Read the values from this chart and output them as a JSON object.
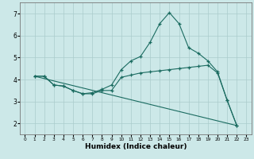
{
  "title": "",
  "xlabel": "Humidex (Indice chaleur)",
  "xlim": [
    -0.5,
    23.5
  ],
  "ylim": [
    1.5,
    7.5
  ],
  "xticks": [
    0,
    1,
    2,
    3,
    4,
    5,
    6,
    7,
    8,
    9,
    10,
    11,
    12,
    13,
    14,
    15,
    16,
    17,
    18,
    19,
    20,
    21,
    22,
    23
  ],
  "yticks": [
    2,
    3,
    4,
    5,
    6,
    7
  ],
  "bg_color": "#cce8e8",
  "grid_color": "#aacccc",
  "line_color": "#1a6b60",
  "line1_x": [
    1,
    2,
    3,
    4,
    5,
    6,
    7,
    8,
    9,
    10,
    11,
    12,
    13,
    14,
    15,
    16,
    17,
    18,
    19,
    20,
    21,
    22
  ],
  "line1_y": [
    4.15,
    4.15,
    3.75,
    3.7,
    3.5,
    3.35,
    3.4,
    3.55,
    3.75,
    4.45,
    4.85,
    5.05,
    5.7,
    6.55,
    7.05,
    6.55,
    5.45,
    5.2,
    4.85,
    4.35,
    3.05,
    1.9
  ],
  "line2_x": [
    1,
    2,
    3,
    4,
    5,
    6,
    7,
    8,
    9,
    10,
    11,
    12,
    13,
    14,
    15,
    16,
    17,
    18,
    19,
    20,
    21,
    22
  ],
  "line2_y": [
    4.15,
    4.15,
    3.75,
    3.7,
    3.5,
    3.35,
    3.35,
    3.5,
    3.5,
    4.1,
    4.2,
    4.3,
    4.35,
    4.4,
    4.45,
    4.5,
    4.55,
    4.6,
    4.65,
    4.3,
    3.05,
    1.9
  ],
  "line3_x": [
    1,
    22
  ],
  "line3_y": [
    4.15,
    1.9
  ]
}
